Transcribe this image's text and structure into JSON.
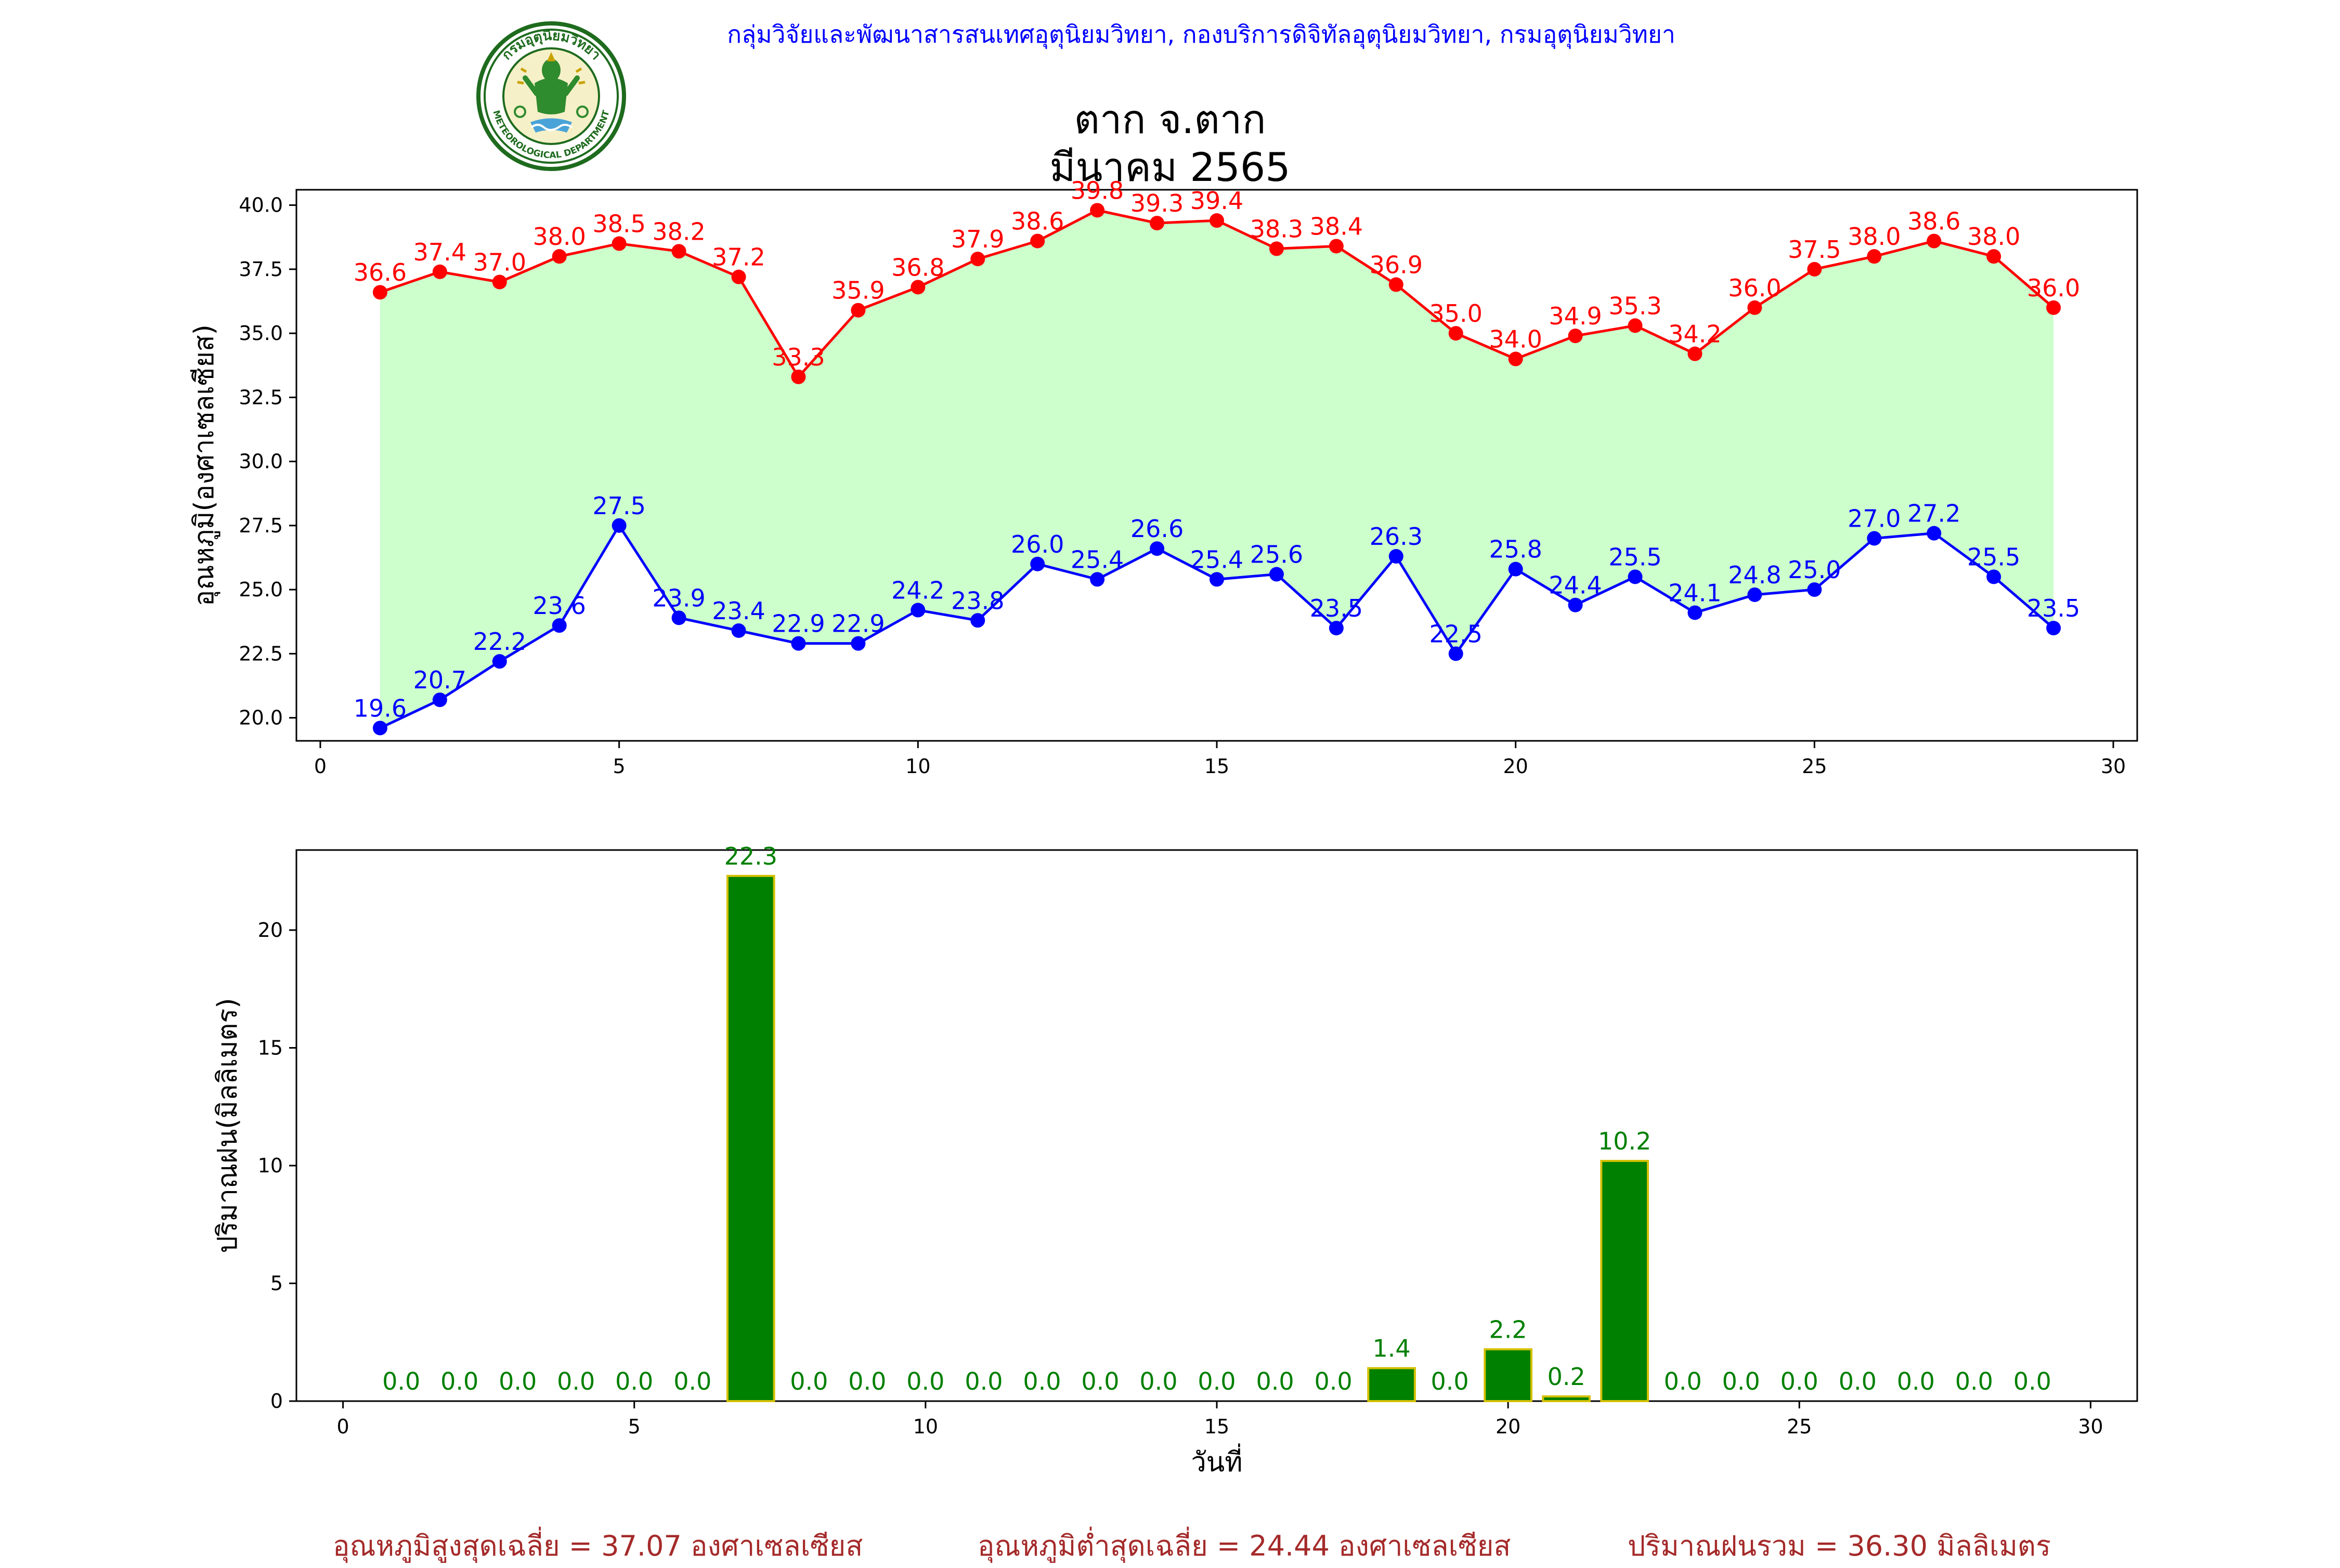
{
  "header": {
    "agency": "กลุ่มวิจัยและพัฒนาสารสนเทศอุตุนิยมวิทยา, กองบริการดิจิทัลอุตุนิยมวิทยา, กรมอุตุนิยมวิทยา",
    "title_line1": "ตาก จ.ตาก",
    "title_line2": "มีนาคม 2565",
    "logo_text_top": "กรมอุตุนิยมวิทยา",
    "logo_text_bottom": "METEOROLOGICAL DEPARTMENT"
  },
  "colors": {
    "max_line": "#ff0000",
    "min_line": "#0000ff",
    "fill": "#ccffcc",
    "bar": "#008000",
    "bar_edge": "#d4c000",
    "bar_label": "#008000",
    "agency_text": "#0000ff",
    "footer_text": "#a52a2a"
  },
  "chart_data": [
    {
      "type": "line",
      "ylabel": "อุณหภูมิ(องศาเซลเซียส)",
      "xlabel": "",
      "x": [
        1,
        2,
        3,
        4,
        5,
        6,
        7,
        8,
        9,
        10,
        11,
        12,
        13,
        14,
        15,
        16,
        17,
        18,
        19,
        20,
        21,
        22,
        23,
        24,
        25,
        26,
        27,
        28,
        29
      ],
      "series": [
        {
          "values": [
            36.6,
            37.4,
            37.0,
            38.0,
            38.5,
            38.2,
            37.2,
            33.3,
            35.9,
            36.8,
            37.9,
            38.6,
            39.8,
            39.3,
            39.4,
            38.3,
            38.4,
            36.9,
            35.0,
            34.0,
            34.9,
            35.3,
            34.2,
            36.0,
            37.5,
            38.0,
            38.6,
            38.0,
            36.0
          ]
        },
        {
          "values": [
            19.6,
            20.7,
            22.2,
            23.6,
            27.5,
            23.9,
            23.4,
            22.9,
            22.9,
            24.2,
            23.8,
            26.0,
            25.4,
            26.6,
            25.4,
            25.6,
            23.5,
            26.3,
            22.5,
            25.8,
            24.4,
            25.5,
            24.1,
            24.8,
            25.0,
            27.0,
            27.2,
            25.5,
            23.5
          ]
        }
      ],
      "xlim": [
        -0.4,
        30.4
      ],
      "ylim": [
        19.1,
        40.6
      ],
      "xticks": [
        0,
        5,
        10,
        15,
        20,
        25,
        30
      ],
      "yticks": [
        20.0,
        22.5,
        25.0,
        27.5,
        30.0,
        32.5,
        35.0,
        37.5,
        40.0
      ],
      "grid": false
    },
    {
      "type": "bar",
      "ylabel": "ปริมาณฝน(มิลลิเมตร)",
      "xlabel": "วันที่",
      "x": [
        1,
        2,
        3,
        4,
        5,
        6,
        7,
        8,
        9,
        10,
        11,
        12,
        13,
        14,
        15,
        16,
        17,
        18,
        19,
        20,
        21,
        22,
        23,
        24,
        25,
        26,
        27,
        28,
        29
      ],
      "values": [
        0.0,
        0.0,
        0.0,
        0.0,
        0.0,
        0.0,
        22.3,
        0.0,
        0.0,
        0.0,
        0.0,
        0.0,
        0.0,
        0.0,
        0.0,
        0.0,
        0.0,
        1.4,
        0.0,
        2.2,
        0.2,
        10.2,
        0.0,
        0.0,
        0.0,
        0.0,
        0.0,
        0.0,
        0.0
      ],
      "xlim": [
        -0.8,
        30.8
      ],
      "ylim": [
        0,
        23.4
      ],
      "xticks": [
        0,
        5,
        10,
        15,
        20,
        25,
        30
      ],
      "yticks": [
        0,
        5,
        10,
        15,
        20
      ],
      "grid": false
    }
  ],
  "footer": {
    "avg_max": "อุณหภูมิสูงสุดเฉลี่ย = 37.07 องศาเซลเซียส",
    "avg_min": "อุณหภูมิต่ำสุดเฉลี่ย = 24.44 องศาเซลเซียส",
    "total_rain": "ปริมาณฝนรวม = 36.30 มิลลิเมตร"
  }
}
